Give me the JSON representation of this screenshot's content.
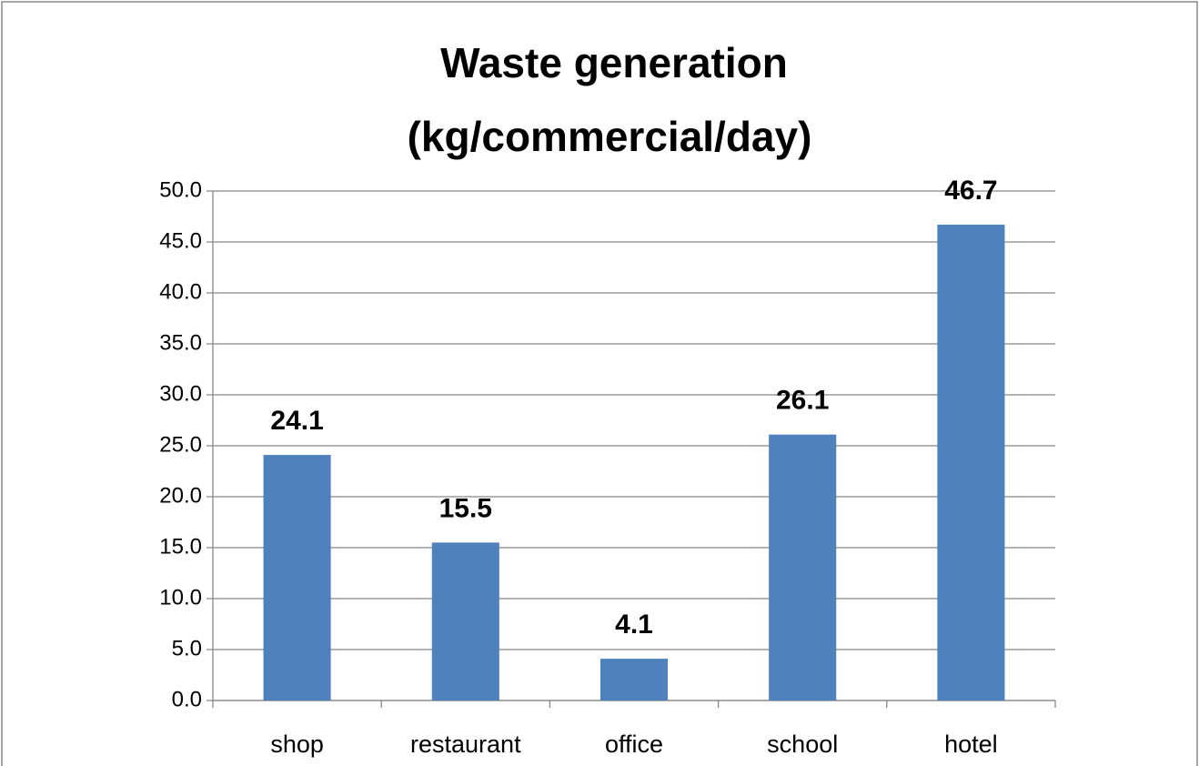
{
  "chart_data": {
    "type": "bar",
    "title": [
      "Waste generation",
      "(kg/commercial/day)"
    ],
    "categories": [
      "shop",
      "restaurant",
      "office",
      "school",
      "hotel"
    ],
    "values": [
      24.1,
      15.5,
      4.1,
      26.1,
      46.7
    ],
    "color": "#4f81bd",
    "ylim": [
      0,
      50
    ],
    "yticks": [
      {
        "value": 0,
        "label": "0.0"
      },
      {
        "value": 5,
        "label": "5.0"
      },
      {
        "value": 10,
        "label": "10.0"
      },
      {
        "value": 15,
        "label": "15.0"
      },
      {
        "value": 20,
        "label": "20.0"
      },
      {
        "value": 25,
        "label": "25.0"
      },
      {
        "value": 30,
        "label": "30.0"
      },
      {
        "value": 35,
        "label": "35.0"
      },
      {
        "value": 40,
        "label": "40.0"
      },
      {
        "value": 45,
        "label": "45.0"
      },
      {
        "value": 50,
        "label": "50.0"
      }
    ],
    "grid": true
  }
}
